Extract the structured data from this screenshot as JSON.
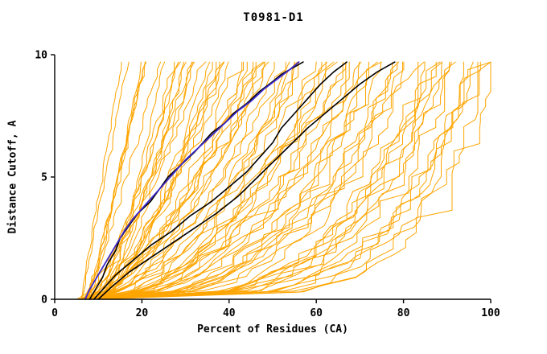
{
  "chart_data": {
    "type": "line",
    "title": "T0981-D1",
    "xlabel": "Percent of Residues (CA)",
    "ylabel": "Distance Cutoff, A",
    "xlim": [
      0,
      100
    ],
    "ylim": [
      0,
      10
    ],
    "xticks": [
      0,
      20,
      40,
      60,
      80,
      100
    ],
    "yticks": [
      0,
      5,
      10
    ],
    "grid": false,
    "legend": "none",
    "ensemble": {
      "description": "orange per-model accuracy curves (percent of CA residues under distance cutoff)",
      "count": 78,
      "color": "#FFA500",
      "width": 1,
      "start_x_range": [
        5,
        11
      ],
      "top_x_range": [
        17,
        100
      ],
      "top_y": 9.7,
      "seed": 1337
    },
    "series": [
      {
        "name": "highlighted-model-black-1",
        "color": "#000000",
        "width": 1.6,
        "points": [
          [
            8,
            0
          ],
          [
            9,
            0.3
          ],
          [
            11,
            0.9
          ],
          [
            12,
            1.4
          ],
          [
            14,
            2.0
          ],
          [
            15,
            2.5
          ],
          [
            17,
            3.0
          ],
          [
            19,
            3.5
          ],
          [
            22,
            4.0
          ],
          [
            24,
            4.5
          ],
          [
            26,
            5.0
          ],
          [
            29,
            5.5
          ],
          [
            32,
            6.0
          ],
          [
            34,
            6.4
          ],
          [
            36,
            6.8
          ],
          [
            39,
            7.2
          ],
          [
            41,
            7.6
          ],
          [
            44,
            8.0
          ],
          [
            47,
            8.5
          ],
          [
            50,
            8.9
          ],
          [
            52,
            9.2
          ],
          [
            55,
            9.5
          ],
          [
            57,
            9.7
          ]
        ]
      },
      {
        "name": "highlighted-model-black-2",
        "color": "#000000",
        "width": 1.6,
        "points": [
          [
            9,
            0
          ],
          [
            11,
            0.4
          ],
          [
            14,
            1.0
          ],
          [
            18,
            1.6
          ],
          [
            22,
            2.2
          ],
          [
            27,
            2.8
          ],
          [
            31,
            3.4
          ],
          [
            36,
            4.0
          ],
          [
            40,
            4.6
          ],
          [
            44,
            5.2
          ],
          [
            47,
            5.8
          ],
          [
            50,
            6.4
          ],
          [
            52,
            7.0
          ],
          [
            55,
            7.6
          ],
          [
            58,
            8.2
          ],
          [
            61,
            8.8
          ],
          [
            64,
            9.3
          ],
          [
            67,
            9.7
          ]
        ]
      },
      {
        "name": "highlighted-model-black-3",
        "color": "#000000",
        "width": 1.6,
        "points": [
          [
            10,
            0
          ],
          [
            13,
            0.5
          ],
          [
            17,
            1.1
          ],
          [
            22,
            1.7
          ],
          [
            27,
            2.3
          ],
          [
            32,
            2.9
          ],
          [
            37,
            3.5
          ],
          [
            42,
            4.2
          ],
          [
            46,
            4.9
          ],
          [
            50,
            5.6
          ],
          [
            54,
            6.3
          ],
          [
            58,
            7.0
          ],
          [
            62,
            7.6
          ],
          [
            66,
            8.2
          ],
          [
            70,
            8.8
          ],
          [
            74,
            9.3
          ],
          [
            78,
            9.7
          ]
        ]
      },
      {
        "name": "highlighted-model-blue",
        "color": "#3C28C8",
        "width": 1.8,
        "points": [
          [
            7,
            0
          ],
          [
            8,
            0.4
          ],
          [
            10,
            1.0
          ],
          [
            12,
            1.6
          ],
          [
            14,
            2.2
          ],
          [
            16,
            2.8
          ],
          [
            18,
            3.3
          ],
          [
            21,
            3.9
          ],
          [
            24,
            4.5
          ],
          [
            27,
            5.1
          ],
          [
            30,
            5.7
          ],
          [
            33,
            6.2
          ],
          [
            36,
            6.7
          ],
          [
            39,
            7.2
          ],
          [
            42,
            7.7
          ],
          [
            45,
            8.1
          ],
          [
            48,
            8.6
          ],
          [
            51,
            9.0
          ],
          [
            54,
            9.4
          ],
          [
            56,
            9.7
          ]
        ]
      }
    ]
  }
}
